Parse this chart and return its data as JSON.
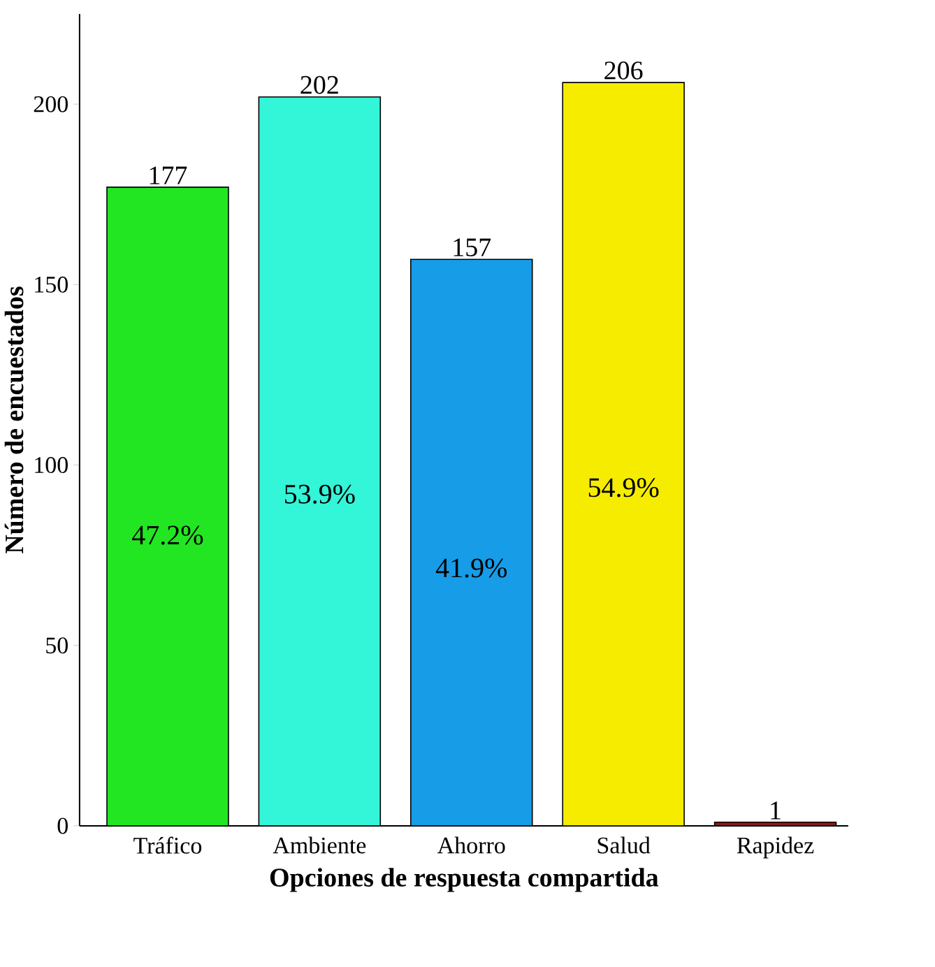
{
  "chart_data": {
    "type": "bar",
    "xlabel": "Opciones de respuesta compartida",
    "ylabel": "Número de encuestados",
    "categories": [
      "Tráfico",
      "Ambiente",
      "Ahorro",
      "Salud",
      "Rapidez"
    ],
    "values": [
      177,
      202,
      157,
      206,
      1
    ],
    "colors": [
      "#22e622",
      "#33f5d8",
      "#179ce8",
      "#f5ec00",
      "#8b1a1a"
    ],
    "ylim": [
      0,
      225
    ],
    "yticks": [
      0,
      50,
      100,
      150,
      200
    ],
    "data_labels": true,
    "annotations": [
      "47.2%",
      "53.9%",
      "41.9%",
      "54.9%"
    ]
  }
}
